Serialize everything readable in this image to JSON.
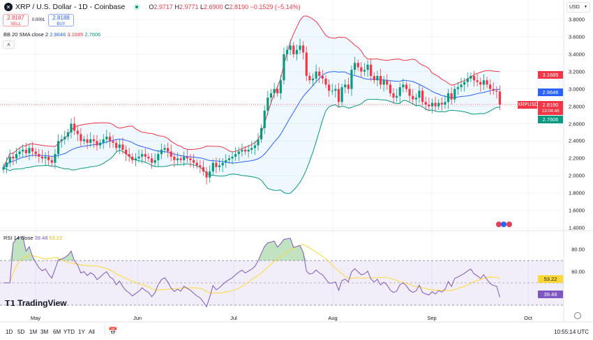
{
  "header": {
    "title": "XRP / U.S. Dollar - 1D - Coinbase",
    "ohlc": {
      "o_label": "O",
      "o": "2.9717",
      "h_label": "H",
      "h": "2.9771",
      "l_label": "L",
      "l": "2.6900",
      "c_label": "C",
      "c": "2.8190",
      "change": "−0.1529 (−5.14%)"
    }
  },
  "trade": {
    "sell_price": "2.8187",
    "sell_label": "SELL",
    "spread": "0.0001",
    "buy_price": "2.8188",
    "buy_label": "BUY"
  },
  "bb_legend": {
    "label": "BB 20 SMA close 2",
    "basis": "2.9646",
    "upper": "3.1685",
    "lower": "2.7606"
  },
  "currency": "USD",
  "price_axis": [
    "3.8000",
    "3.6000",
    "3.4000",
    "3.2000",
    "3.0000",
    "2.8000",
    "2.6000",
    "2.4000",
    "2.2000",
    "2.0000",
    "1.8000",
    "1.6000",
    "1.4000"
  ],
  "price_tags": {
    "upper": "3.1685",
    "basis": "2.9646",
    "symbol": "XRPUSD",
    "last": "2.8190",
    "countdown": "13:04:46",
    "lower": "2.7606"
  },
  "rsi": {
    "label": "RSI 14 close",
    "value": "39.48",
    "ma": "53.22",
    "axis": [
      "80.00",
      "60.00"
    ]
  },
  "time_axis": [
    "May",
    "Jun",
    "Jul",
    "Aug",
    "Sep",
    "Oct"
  ],
  "branding": "TradingView",
  "bottom": {
    "ranges": [
      "1D",
      "5D",
      "1M",
      "3M",
      "6M",
      "YTD",
      "1Y",
      "All"
    ],
    "clock": "10:55:14 UTC"
  },
  "colors": {
    "up": "#089981",
    "down": "#f23645",
    "basis": "#2962ff",
    "upper": "#f23645",
    "lower": "#089981",
    "rsi": "#7e57c2",
    "rsi_ma": "#fdd835"
  },
  "chart_data": {
    "type": "candlestick",
    "interval": "1D",
    "start": "Apr 21",
    "end": "Sep 23",
    "closes": [
      2.1,
      2.15,
      2.22,
      2.2,
      2.25,
      2.28,
      2.3,
      2.26,
      2.32,
      2.28,
      2.25,
      2.22,
      2.2,
      2.22,
      2.18,
      2.15,
      2.25,
      2.4,
      2.42,
      2.45,
      2.5,
      2.6,
      2.52,
      2.48,
      2.4,
      2.42,
      2.38,
      2.42,
      2.4,
      2.35,
      2.38,
      2.42,
      2.45,
      2.4,
      2.38,
      2.32,
      2.36,
      2.3,
      2.25,
      2.22,
      2.18,
      2.2,
      2.22,
      2.25,
      2.22,
      2.2,
      2.15,
      2.18,
      2.25,
      2.3,
      2.32,
      2.28,
      2.22,
      2.18,
      2.2,
      2.18,
      2.22,
      2.2,
      2.18,
      2.15,
      2.12,
      2.1,
      2.05,
      1.98,
      2.05,
      2.15,
      2.1,
      2.12,
      2.15,
      2.18,
      2.2,
      2.22,
      2.25,
      2.28,
      2.3,
      2.28,
      2.3,
      2.32,
      2.35,
      2.42,
      2.55,
      2.75,
      2.9,
      2.95,
      3.0,
      2.95,
      3.1,
      3.4,
      3.45,
      3.5,
      3.4,
      3.45,
      3.5,
      3.42,
      3.15,
      3.1,
      3.12,
      3.2,
      3.15,
      3.12,
      3.05,
      2.98,
      2.98,
      3.0,
      2.85,
      3.02,
      3.05,
      3.0,
      3.22,
      3.3,
      3.25,
      3.2,
      3.22,
      3.28,
      3.15,
      3.1,
      3.15,
      3.05,
      3.1,
      3.05,
      2.95,
      2.9,
      2.92,
      3.02,
      3.05,
      3.0,
      2.92,
      2.88,
      2.9,
      2.98,
      2.85,
      2.82,
      2.8,
      2.84,
      2.8,
      2.84,
      2.82,
      2.85,
      2.95,
      2.88,
      3.0,
      3.02,
      3.05,
      3.08,
      3.12,
      3.15,
      3.1,
      3.08,
      3.05,
      3.1,
      3.05,
      3.0,
      2.98,
      2.97,
      2.819
    ],
    "ylim": [
      1.4,
      3.8
    ],
    "rsi_levels": [
      70,
      50,
      30
    ]
  }
}
